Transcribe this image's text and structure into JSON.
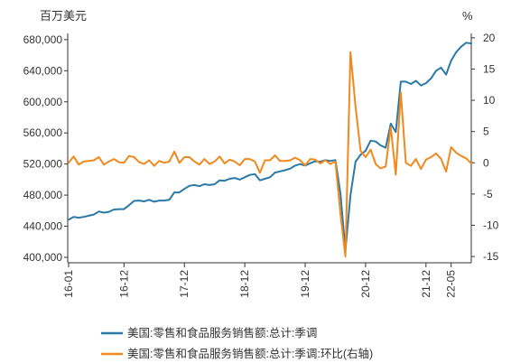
{
  "chart_data": {
    "type": "line",
    "left_unit": "百万美元",
    "right_unit": "%",
    "x_tick_labels": [
      "16-01",
      "16-12",
      "17-12",
      "18-12",
      "19-12",
      "20-12",
      "21-12",
      "22-05"
    ],
    "y_left": {
      "ticks": [
        "680,000",
        "640,000",
        "600,000",
        "560,000",
        "520,000",
        "480,000",
        "440,000",
        "400,000"
      ],
      "ylim": [
        393000,
        688000
      ]
    },
    "y_right": {
      "ticks": [
        "20",
        "15",
        "10",
        "5",
        "0",
        "-5",
        "-10",
        "-15"
      ],
      "ylim": [
        -16,
        20.7
      ]
    },
    "grid": false,
    "legend_position": "bottom",
    "series": [
      {
        "name": "美国:零售和食品服务销售额:总计:季调",
        "axis": "left",
        "color": "#2b79a7",
        "values": [
          448500,
          452000,
          451000,
          452000,
          453500,
          455000,
          459000,
          457500,
          458500,
          461500,
          462000,
          462000,
          467000,
          472500,
          473000,
          472000,
          474000,
          471500,
          473000,
          473000,
          474000,
          483500,
          483500,
          488000,
          492000,
          493000,
          491500,
          494000,
          493000,
          494000,
          499000,
          498500,
          501000,
          502000,
          500000,
          503000,
          506000,
          507000,
          499000,
          501000,
          503000,
          509000,
          510500,
          512000,
          514000,
          518000,
          520000,
          518000,
          521000,
          523500,
          523000,
          525000,
          524000,
          525000,
          482000,
          409000,
          480000,
          523000,
          532000,
          537000,
          550000,
          549000,
          544000,
          541000,
          572000,
          561000,
          626000,
          626000,
          623000,
          627000,
          621000,
          624000,
          630000,
          640000,
          644000,
          635000,
          653000,
          664000,
          671000,
          676000,
          675000
        ]
      },
      {
        "name": "美国:零售和食品服务销售额:总计:季调:环比(右轴)",
        "axis": "right",
        "color": "#f0891e",
        "values": [
          0.0,
          1.0,
          -0.3,
          0.2,
          0.3,
          0.4,
          0.9,
          -0.3,
          0.2,
          0.6,
          0.1,
          0.0,
          1.1,
          0.9,
          0.1,
          -0.2,
          0.4,
          -0.5,
          0.3,
          0.0,
          0.2,
          1.8,
          0.0,
          0.9,
          0.9,
          0.2,
          -0.3,
          0.6,
          -0.2,
          0.2,
          1.0,
          -0.1,
          0.5,
          0.2,
          -0.4,
          0.6,
          0.6,
          0.2,
          -1.6,
          0.4,
          0.4,
          1.2,
          0.3,
          0.3,
          0.4,
          0.8,
          0.4,
          -0.4,
          0.6,
          0.5,
          -0.1,
          0.4,
          -0.2,
          0.2,
          -8.2,
          -15.0,
          17.7,
          9.0,
          1.9,
          0.9,
          2.1,
          -0.2,
          -0.9,
          -0.6,
          5.7,
          -1.9,
          11.3,
          0.0,
          -0.5,
          0.6,
          -1.0,
          0.5,
          0.9,
          1.5,
          0.6,
          -1.4,
          2.5,
          1.6,
          1.1,
          0.7,
          -0.1
        ]
      }
    ]
  }
}
